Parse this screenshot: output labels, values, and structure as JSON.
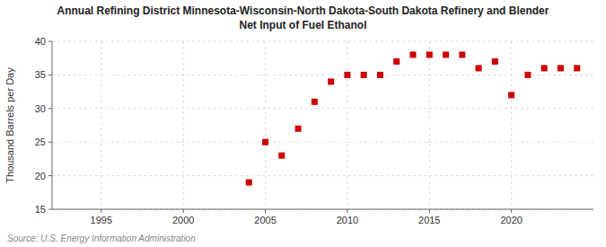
{
  "chart_data": {
    "type": "scatter",
    "title": "Annual Refining District Minnesota-Wisconsin-North Dakota-South Dakota Refinery and Blender\nNet Input of Fuel Ethanol",
    "y_label": "Thousand Barrels per Day",
    "annotation": "Source: U.S. Energy Information Administration",
    "x": [
      2004,
      2005,
      2006,
      2007,
      2008,
      2009,
      2010,
      2011,
      2012,
      2013,
      2014,
      2015,
      2016,
      2017,
      2018,
      2019,
      2020,
      2021,
      2022,
      2023,
      2024
    ],
    "values": [
      19,
      25,
      23,
      27,
      31,
      34,
      35,
      35,
      35,
      37,
      38,
      38,
      38,
      38,
      36,
      37,
      32,
      35,
      36,
      36,
      36
    ],
    "xlim": [
      1992,
      2025
    ],
    "ylim": [
      15,
      40
    ],
    "xticks": [
      1995,
      2000,
      2005,
      2010,
      2015,
      2020
    ],
    "yticks": [
      15,
      20,
      25,
      30,
      35,
      40
    ],
    "color": "#CC0000",
    "marker": "square",
    "grid": true
  }
}
